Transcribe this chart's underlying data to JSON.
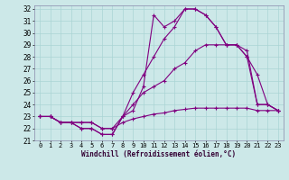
{
  "xlabel": "Windchill (Refroidissement éolien,°C)",
  "bg_color": "#cce8e8",
  "line_color": "#800080",
  "grid_color": "#aad4d4",
  "x_hours": [
    0,
    1,
    2,
    3,
    4,
    5,
    6,
    7,
    8,
    9,
    10,
    11,
    12,
    13,
    14,
    15,
    16,
    17,
    18,
    19,
    20,
    21,
    22,
    23
  ],
  "series1": [
    23,
    23,
    22.5,
    22.5,
    22,
    22,
    21.5,
    21.5,
    23,
    23.5,
    25.5,
    31.5,
    30.5,
    31,
    32,
    32,
    31.5,
    30.5,
    29,
    29,
    28,
    26.5,
    24,
    23.5
  ],
  "series2": [
    23,
    23,
    22.5,
    22.5,
    22,
    22,
    21.5,
    21.5,
    23,
    25,
    26.5,
    28,
    29.5,
    30.5,
    32,
    32,
    31.5,
    30.5,
    29,
    29,
    28.5,
    24,
    24,
    23.5
  ],
  "series3": [
    23,
    23,
    22.5,
    22.5,
    22.5,
    22.5,
    22,
    22,
    23,
    24,
    25,
    25.5,
    26,
    27,
    27.5,
    28.5,
    29,
    29,
    29,
    29,
    28,
    24,
    24,
    23.5
  ],
  "series4": [
    23,
    23,
    22.5,
    22.5,
    22.5,
    22.5,
    22,
    22,
    22.5,
    22.8,
    23,
    23.2,
    23.3,
    23.5,
    23.6,
    23.7,
    23.7,
    23.7,
    23.7,
    23.7,
    23.7,
    23.5,
    23.5,
    23.5
  ],
  "ylim_min": 21,
  "ylim_max": 32,
  "yticks": [
    21,
    22,
    23,
    24,
    25,
    26,
    27,
    28,
    29,
    30,
    31,
    32
  ]
}
